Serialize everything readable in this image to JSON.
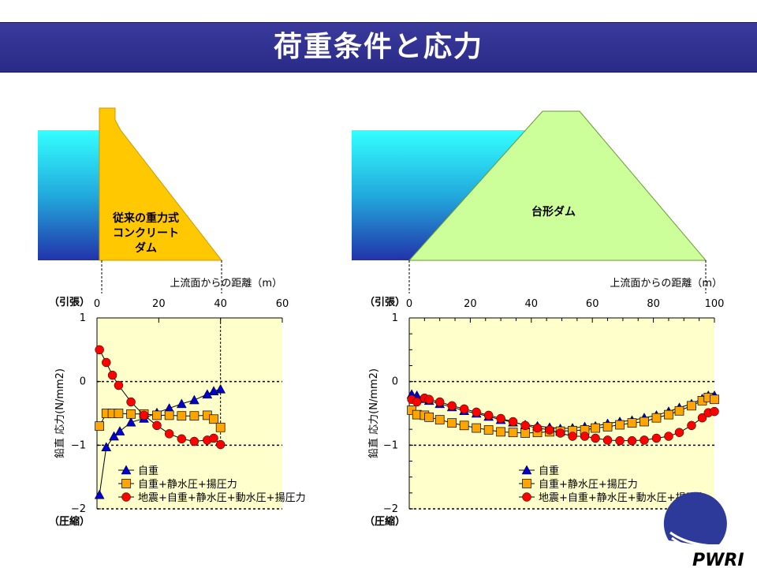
{
  "header": {
    "title": "荷重条件と応力"
  },
  "diagrams": {
    "left_dam_label": [
      "従来の重力式",
      "コンクリート",
      "ダム"
    ],
    "right_dam_label": "台形ダム"
  },
  "colors": {
    "title_bar": "#2e2e90",
    "concrete": "#ffc800",
    "trapezoid": "#ccff99",
    "plot_bg": "#ffffcc",
    "water_top": "#33ffff",
    "water_bottom": "#2233aa",
    "series_1": "#0000cc",
    "series_2": "#ffa500",
    "series_3": "#ff0000"
  },
  "logo": {
    "text": "PWRI"
  },
  "chart_data": [
    {
      "type": "line",
      "xlabel": "上流面からの距離（m）",
      "ylabel": "鉛直 応力(N/mm2)",
      "tension_label": "（引張）",
      "compression_label": "（圧縮）",
      "xlim": [
        0,
        60
      ],
      "ylim": [
        -2,
        1
      ],
      "xticks": [
        "0",
        "20",
        "40",
        "60"
      ],
      "yticks": [
        "1",
        "0",
        "−1",
        "−2"
      ],
      "legend": "bottom-right",
      "series": [
        {
          "name": "自重",
          "marker": "triangle",
          "x": [
            0.8,
            3,
            5.5,
            7.4,
            11,
            15.2,
            19.4,
            23.4,
            27.4,
            31.5,
            35.7,
            37.8,
            40
          ],
          "y": [
            -1.78,
            -1.03,
            -0.86,
            -0.78,
            -0.64,
            -0.58,
            -0.49,
            -0.42,
            -0.35,
            -0.29,
            -0.2,
            -0.15,
            -0.12
          ]
        },
        {
          "name": "自重+静水圧+揚圧力",
          "marker": "square",
          "x": [
            0.8,
            3,
            5,
            7,
            11,
            15.2,
            19.4,
            23.4,
            27.4,
            31.5,
            35.7,
            37.8,
            40
          ],
          "y": [
            -0.7,
            -0.5,
            -0.5,
            -0.5,
            -0.51,
            -0.51,
            -0.53,
            -0.53,
            -0.54,
            -0.54,
            -0.53,
            -0.59,
            -0.72
          ]
        },
        {
          "name": "地震+自重+静水圧+動水圧+揚圧力",
          "marker": "circle",
          "x": [
            0.8,
            3,
            5,
            7,
            11,
            15.2,
            19.4,
            23.4,
            27.4,
            31.5,
            35.7,
            37.8,
            40
          ],
          "y": [
            0.5,
            0.3,
            0.1,
            -0.06,
            -0.32,
            -0.53,
            -0.69,
            -0.82,
            -0.9,
            -0.94,
            -0.92,
            -0.89,
            -0.99
          ]
        }
      ]
    },
    {
      "type": "line",
      "xlabel": "上流面からの距離（m）",
      "ylabel": "鉛直 応力(N/mm2)",
      "tension_label": "（引張）",
      "compression_label": "（圧縮）",
      "xlim": [
        0,
        100
      ],
      "ylim": [
        -2,
        1
      ],
      "xticks": [
        "0",
        "20",
        "40",
        "60",
        "80",
        "100"
      ],
      "yticks": [
        "1",
        "0",
        "−1",
        "−2"
      ],
      "legend": "bottom-right",
      "series": [
        {
          "name": "自重",
          "marker": "triangle",
          "x": [
            0.8,
            2.5,
            5,
            6.5,
            10,
            14,
            18,
            22,
            26,
            30,
            34,
            38,
            42,
            46,
            49.5,
            53.5,
            57.5,
            61,
            65,
            69,
            73,
            77,
            81,
            85,
            88.5,
            92.5,
            96,
            98,
            100
          ],
          "y": [
            -0.2,
            -0.22,
            -0.27,
            -0.3,
            -0.35,
            -0.4,
            -0.46,
            -0.5,
            -0.55,
            -0.6,
            -0.64,
            -0.68,
            -0.7,
            -0.72,
            -0.74,
            -0.73,
            -0.71,
            -0.7,
            -0.66,
            -0.63,
            -0.61,
            -0.57,
            -0.53,
            -0.47,
            -0.41,
            -0.35,
            -0.27,
            -0.22,
            -0.22
          ]
        },
        {
          "name": "自重+静水圧+揚圧力",
          "marker": "square",
          "x": [
            0.8,
            2.5,
            5,
            6.5,
            10,
            14,
            18,
            22,
            26,
            30,
            34,
            38,
            42,
            46,
            49.5,
            53.5,
            57.5,
            61,
            65,
            69,
            73,
            77,
            81,
            85,
            88.5,
            92.5,
            96,
            98,
            100
          ],
          "y": [
            -0.45,
            -0.52,
            -0.53,
            -0.56,
            -0.6,
            -0.65,
            -0.69,
            -0.73,
            -0.76,
            -0.79,
            -0.8,
            -0.81,
            -0.8,
            -0.79,
            -0.78,
            -0.77,
            -0.76,
            -0.73,
            -0.71,
            -0.68,
            -0.65,
            -0.63,
            -0.57,
            -0.52,
            -0.46,
            -0.38,
            -0.3,
            -0.25,
            -0.28
          ]
        },
        {
          "name": "地震+自重+静水圧+動水圧+揚圧力",
          "marker": "circle",
          "x": [
            0.8,
            2.5,
            5,
            6.5,
            10,
            14,
            18,
            22,
            26,
            30,
            34,
            38,
            42,
            46,
            49.5,
            53.5,
            57.5,
            61,
            65,
            69,
            73,
            77,
            81,
            85,
            88.5,
            92.5,
            96,
            98,
            100
          ],
          "y": [
            -0.28,
            -0.32,
            -0.26,
            -0.28,
            -0.32,
            -0.38,
            -0.43,
            -0.48,
            -0.53,
            -0.58,
            -0.63,
            -0.69,
            -0.73,
            -0.76,
            -0.81,
            -0.86,
            -0.86,
            -0.89,
            -0.92,
            -0.93,
            -0.93,
            -0.92,
            -0.89,
            -0.86,
            -0.8,
            -0.69,
            -0.57,
            -0.49,
            -0.47
          ]
        }
      ]
    }
  ]
}
